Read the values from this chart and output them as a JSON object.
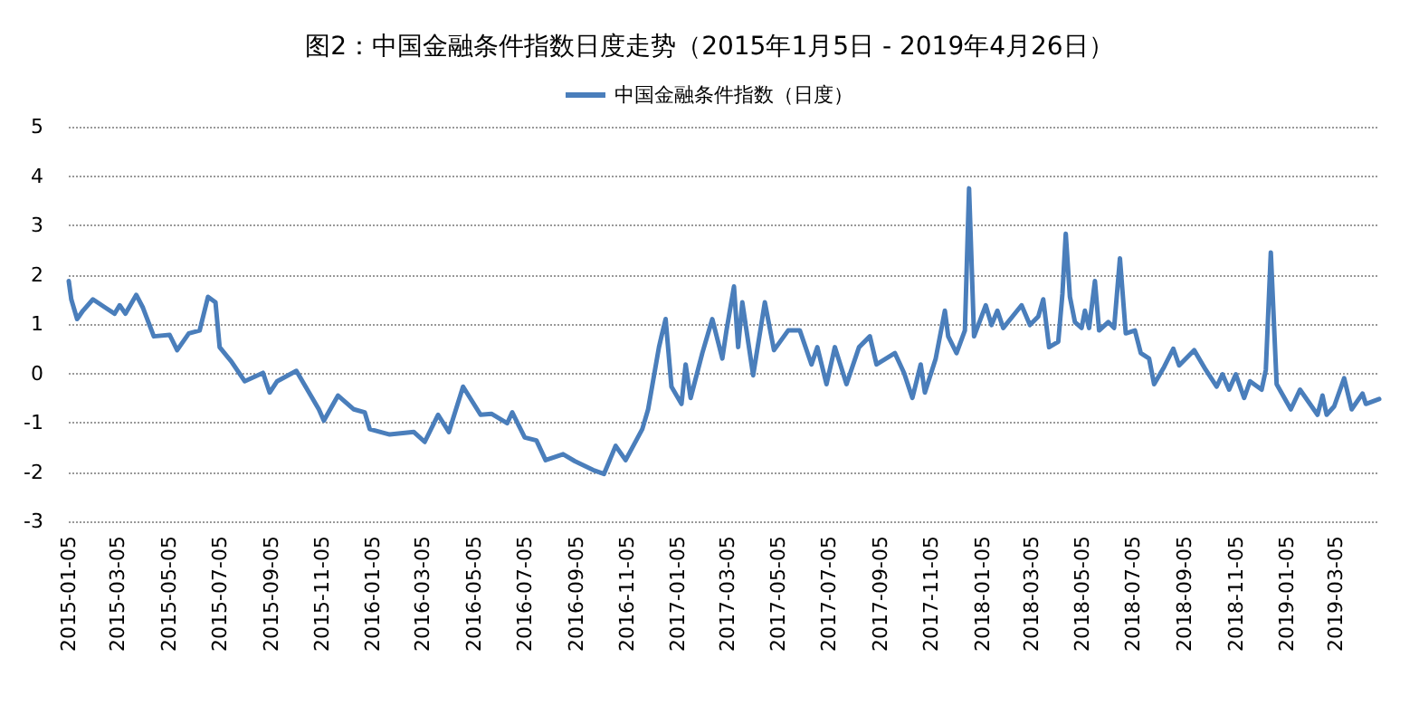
{
  "chart_data": {
    "type": "line",
    "title": "图2：中国金融条件指数日度走势（2015年1月5日 - 2019年4月26日）",
    "x": [
      "2015-01-05",
      "2015-01-08",
      "2015-01-15",
      "2015-01-22",
      "2015-02-03",
      "2015-02-18",
      "2015-03-01",
      "2015-03-07",
      "2015-03-14",
      "2015-03-27",
      "2015-04-04",
      "2015-04-17",
      "2015-05-06",
      "2015-05-15",
      "2015-05-29",
      "2015-06-11",
      "2015-06-21",
      "2015-06-30",
      "2015-07-05",
      "2015-07-19",
      "2015-08-04",
      "2015-08-26",
      "2015-09-03",
      "2015-09-12",
      "2015-10-05",
      "2015-11-01",
      "2015-11-07",
      "2015-11-24",
      "2015-12-13",
      "2015-12-26",
      "2016-01-01",
      "2016-01-25",
      "2016-02-23",
      "2016-03-07",
      "2016-03-23",
      "2016-04-05",
      "2016-04-22",
      "2016-05-13",
      "2016-05-26",
      "2016-06-14",
      "2016-06-20",
      "2016-07-05",
      "2016-07-19",
      "2016-07-30",
      "2016-08-20",
      "2016-09-03",
      "2016-09-25",
      "2016-10-08",
      "2016-10-22",
      "2016-11-03",
      "2016-11-23",
      "2016-11-30",
      "2016-12-13",
      "2016-12-16",
      "2016-12-21",
      "2016-12-28",
      "2017-01-09",
      "2017-01-14",
      "2017-01-20",
      "2017-02-03",
      "2017-02-15",
      "2017-02-27",
      "2017-03-04",
      "2017-03-13",
      "2017-03-18",
      "2017-03-23",
      "2017-04-05",
      "2017-04-19",
      "2017-04-30",
      "2017-05-17",
      "2017-05-31",
      "2017-06-14",
      "2017-06-21",
      "2017-07-02",
      "2017-07-12",
      "2017-07-26",
      "2017-08-10",
      "2017-08-23",
      "2017-08-31",
      "2017-09-22",
      "2017-10-03",
      "2017-10-13",
      "2017-10-23",
      "2017-10-28",
      "2017-11-10",
      "2017-11-21",
      "2017-11-25",
      "2017-12-05",
      "2017-12-15",
      "2017-12-20",
      "2017-12-26",
      "2018-01-09",
      "2018-01-16",
      "2018-01-23",
      "2018-01-30",
      "2018-02-21",
      "2018-03-03",
      "2018-03-13",
      "2018-03-19",
      "2018-03-26",
      "2018-04-06",
      "2018-04-11",
      "2018-04-15",
      "2018-04-20",
      "2018-04-26",
      "2018-05-04",
      "2018-05-08",
      "2018-05-13",
      "2018-05-20",
      "2018-05-25",
      "2018-06-05",
      "2018-06-12",
      "2018-06-19",
      "2018-06-26",
      "2018-07-07",
      "2018-07-14",
      "2018-07-24",
      "2018-07-30",
      "2018-08-11",
      "2018-08-22",
      "2018-08-29",
      "2018-09-16",
      "2018-09-30",
      "2018-10-13",
      "2018-10-20",
      "2018-10-28",
      "2018-11-05",
      "2018-11-15",
      "2018-11-22",
      "2018-12-06",
      "2018-12-11",
      "2018-12-17",
      "2018-12-24",
      "2019-01-10",
      "2019-01-21",
      "2019-02-11",
      "2019-02-17",
      "2019-02-22",
      "2019-03-03",
      "2019-03-15",
      "2019-03-24",
      "2019-04-06",
      "2019-04-10",
      "2019-04-26"
    ],
    "series": [
      {
        "name": "中国金融条件指数（日度）",
        "color": "#4a7ebb",
        "values": [
          1.87,
          1.5,
          1.1,
          1.27,
          1.5,
          1.33,
          1.21,
          1.38,
          1.21,
          1.59,
          1.33,
          0.75,
          0.78,
          0.47,
          0.81,
          0.87,
          1.55,
          1.44,
          0.53,
          0.24,
          -0.16,
          0.01,
          -0.39,
          -0.16,
          0.05,
          -0.73,
          -0.96,
          -0.45,
          -0.73,
          -0.79,
          -1.13,
          -1.24,
          -1.19,
          -1.39,
          -0.84,
          -1.19,
          -0.27,
          -0.84,
          -0.82,
          -1.01,
          -0.79,
          -1.3,
          -1.36,
          -1.76,
          -1.64,
          -1.78,
          -1.96,
          -2.04,
          -1.47,
          -1.76,
          -1.13,
          -0.73,
          0.53,
          0.75,
          1.1,
          -0.27,
          -0.62,
          0.18,
          -0.5,
          0.41,
          1.1,
          0.3,
          0.87,
          1.76,
          0.53,
          1.44,
          -0.04,
          1.44,
          0.47,
          0.87,
          0.87,
          0.18,
          0.53,
          -0.22,
          0.53,
          -0.22,
          0.53,
          0.75,
          0.18,
          0.41,
          0.01,
          -0.5,
          0.18,
          -0.39,
          0.3,
          1.27,
          0.75,
          0.41,
          0.87,
          3.75,
          0.75,
          1.38,
          0.98,
          1.27,
          0.92,
          1.38,
          0.98,
          1.15,
          1.5,
          0.53,
          0.64,
          1.61,
          2.83,
          1.55,
          1.04,
          0.92,
          1.27,
          0.92,
          1.87,
          0.87,
          1.04,
          0.92,
          2.33,
          0.81,
          0.87,
          0.41,
          0.3,
          -0.22,
          0.13,
          0.5,
          0.16,
          0.47,
          0.07,
          -0.27,
          -0.02,
          -0.33,
          -0.02,
          -0.5,
          -0.16,
          -0.33,
          0.07,
          2.45,
          -0.22,
          -0.73,
          -0.33,
          -0.84,
          -0.45,
          -0.84,
          -0.67,
          -0.1,
          -0.73,
          -0.41,
          -0.62,
          -0.52
        ]
      }
    ],
    "xlim": [
      "2015-01-05",
      "2019-04-26"
    ],
    "xticks": [
      "2015-01-05",
      "2015-03-05",
      "2015-05-05",
      "2015-07-05",
      "2015-09-05",
      "2015-11-05",
      "2016-01-05",
      "2016-03-05",
      "2016-05-05",
      "2016-07-05",
      "2016-09-05",
      "2016-11-05",
      "2017-01-05",
      "2017-03-05",
      "2017-05-05",
      "2017-07-05",
      "2017-09-05",
      "2017-11-05",
      "2018-01-05",
      "2018-03-05",
      "2018-05-05",
      "2018-07-05",
      "2018-09-05",
      "2018-11-05",
      "2019-01-05",
      "2019-03-05"
    ],
    "ylim": [
      -3,
      5
    ],
    "yticks": [
      -3,
      -2,
      -1,
      0,
      1,
      2,
      3,
      4,
      5
    ],
    "grid": "y",
    "legend": "top",
    "marker": "none",
    "line_style": "solid"
  }
}
